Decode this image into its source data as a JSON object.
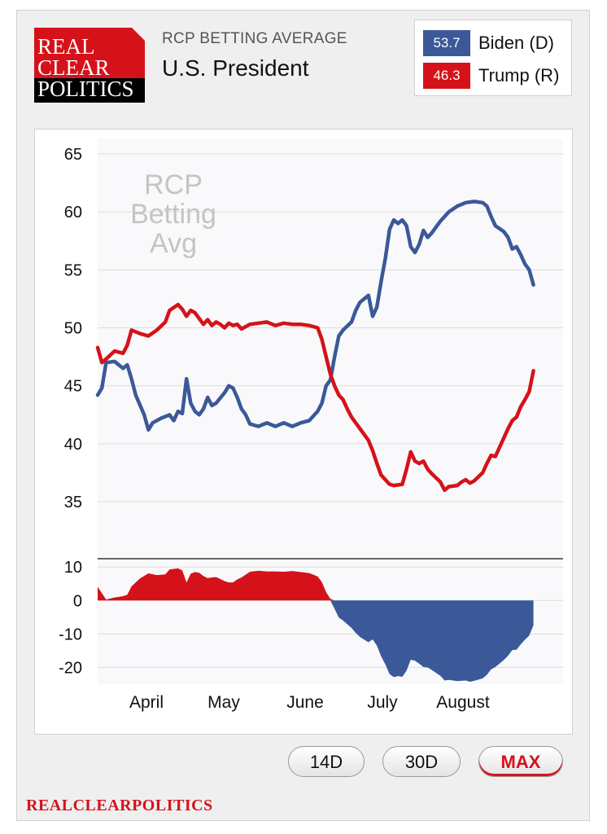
{
  "header": {
    "logo_lines": [
      "REAL",
      "CLEAR",
      "POLITICS"
    ],
    "subtitle": "RCP BETTING AVERAGE",
    "title": "U.S. President"
  },
  "legend": {
    "items": [
      {
        "value": "53.7",
        "name": "Biden (D)",
        "color": "#3b5998"
      },
      {
        "value": "46.3",
        "name": "Trump (R)",
        "color": "#d5121a"
      }
    ]
  },
  "buttons": {
    "d14": "14D",
    "d30": "30D",
    "max": "MAX"
  },
  "footer": "REALCLEARPOLITICS",
  "chart_data": [
    {
      "type": "line",
      "watermark": [
        "RCP",
        "Betting",
        "Avg"
      ],
      "ylim": [
        35,
        65
      ],
      "yticks": [
        35,
        40,
        45,
        50,
        55,
        60,
        65
      ],
      "grid": true,
      "x_labels": [
        "April",
        "May",
        "June",
        "July",
        "August"
      ],
      "series": [
        {
          "name": "Biden (D)",
          "color": "#3b5998",
          "points": [
            [
              0,
              44.2
            ],
            [
              1,
              44.8
            ],
            [
              2,
              47
            ],
            [
              4,
              47.1
            ],
            [
              6,
              46.5
            ],
            [
              7,
              46.8
            ],
            [
              8,
              45.6
            ],
            [
              9,
              44.2
            ],
            [
              11,
              42.5
            ],
            [
              12,
              41.2
            ],
            [
              13,
              41.8
            ],
            [
              15,
              42.2
            ],
            [
              17,
              42.5
            ],
            [
              18,
              42.0
            ],
            [
              19,
              42.8
            ],
            [
              20,
              42.6
            ],
            [
              21,
              45.6
            ],
            [
              22,
              43.5
            ],
            [
              23,
              42.8
            ],
            [
              24,
              42.5
            ],
            [
              25,
              43.0
            ],
            [
              26,
              44.0
            ],
            [
              27,
              43.3
            ],
            [
              28,
              43.5
            ],
            [
              30,
              44.4
            ],
            [
              31,
              45.0
            ],
            [
              32,
              44.8
            ],
            [
              33,
              44.0
            ],
            [
              34,
              43.0
            ],
            [
              35,
              42.5
            ],
            [
              36,
              41.7
            ],
            [
              38,
              41.5
            ],
            [
              40,
              41.8
            ],
            [
              42,
              41.5
            ],
            [
              44,
              41.8
            ],
            [
              46,
              41.5
            ],
            [
              48,
              41.8
            ],
            [
              50,
              42.0
            ],
            [
              52,
              42.8
            ],
            [
              53,
              43.5
            ],
            [
              54,
              45.0
            ],
            [
              55,
              45.5
            ],
            [
              56,
              47.5
            ],
            [
              57,
              49.3
            ],
            [
              58,
              49.8
            ],
            [
              60,
              50.5
            ],
            [
              61,
              51.5
            ],
            [
              62,
              52.2
            ],
            [
              64,
              52.8
            ],
            [
              65,
              51.0
            ],
            [
              66,
              51.8
            ],
            [
              67,
              54.0
            ],
            [
              68,
              56.0
            ],
            [
              69,
              58.5
            ],
            [
              70,
              59.3
            ],
            [
              71,
              59.0
            ],
            [
              72,
              59.3
            ],
            [
              73,
              58.8
            ],
            [
              74,
              57.0
            ],
            [
              75,
              56.5
            ],
            [
              76,
              57.2
            ],
            [
              77,
              58.4
            ],
            [
              78,
              57.8
            ],
            [
              79,
              58.2
            ],
            [
              81,
              59.2
            ],
            [
              83,
              60.0
            ],
            [
              85,
              60.5
            ],
            [
              87,
              60.8
            ],
            [
              89,
              60.9
            ],
            [
              91,
              60.8
            ],
            [
              92,
              60.5
            ],
            [
              93,
              59.6
            ],
            [
              94,
              58.8
            ],
            [
              96,
              58.3
            ],
            [
              97,
              57.8
            ],
            [
              98,
              56.8
            ],
            [
              99,
              57.0
            ],
            [
              100,
              56.3
            ],
            [
              101,
              55.5
            ],
            [
              102,
              55.0
            ],
            [
              103,
              53.7
            ]
          ]
        },
        {
          "name": "Trump (R)",
          "color": "#d5121a",
          "points": [
            [
              0,
              48.3
            ],
            [
              1,
              47.0
            ],
            [
              2,
              47.3
            ],
            [
              4,
              48.0
            ],
            [
              6,
              47.8
            ],
            [
              7,
              48.5
            ],
            [
              8,
              49.8
            ],
            [
              10,
              49.5
            ],
            [
              12,
              49.3
            ],
            [
              14,
              49.8
            ],
            [
              16,
              50.5
            ],
            [
              17,
              51.5
            ],
            [
              19,
              52.0
            ],
            [
              20,
              51.6
            ],
            [
              21,
              51.0
            ],
            [
              22,
              51.5
            ],
            [
              23,
              51.3
            ],
            [
              24,
              50.8
            ],
            [
              25,
              50.3
            ],
            [
              26,
              50.7
            ],
            [
              27,
              50.2
            ],
            [
              28,
              50.5
            ],
            [
              29,
              50.3
            ],
            [
              30,
              50.0
            ],
            [
              31,
              50.4
            ],
            [
              32,
              50.2
            ],
            [
              33,
              50.3
            ],
            [
              34,
              49.9
            ],
            [
              36,
              50.3
            ],
            [
              38,
              50.4
            ],
            [
              40,
              50.5
            ],
            [
              42,
              50.2
            ],
            [
              44,
              50.4
            ],
            [
              46,
              50.3
            ],
            [
              48,
              50.3
            ],
            [
              50,
              50.2
            ],
            [
              52,
              50.0
            ],
            [
              53,
              49.0
            ],
            [
              54,
              47.5
            ],
            [
              55,
              46.0
            ],
            [
              56,
              45.0
            ],
            [
              57,
              44.2
            ],
            [
              58,
              43.8
            ],
            [
              59,
              43.0
            ],
            [
              60,
              42.3
            ],
            [
              61,
              41.8
            ],
            [
              62,
              41.3
            ],
            [
              63,
              40.8
            ],
            [
              64,
              40.3
            ],
            [
              65,
              39.4
            ],
            [
              66,
              38.3
            ],
            [
              67,
              37.3
            ],
            [
              68,
              36.9
            ],
            [
              69,
              36.5
            ],
            [
              70,
              36.4
            ],
            [
              72,
              36.5
            ],
            [
              73,
              37.8
            ],
            [
              74,
              39.3
            ],
            [
              75,
              38.5
            ],
            [
              76,
              38.3
            ],
            [
              77,
              38.5
            ],
            [
              78,
              37.8
            ],
            [
              79,
              37.4
            ],
            [
              81,
              36.7
            ],
            [
              82,
              36.0
            ],
            [
              83,
              36.3
            ],
            [
              85,
              36.4
            ],
            [
              86,
              36.7
            ],
            [
              87,
              36.9
            ],
            [
              88,
              36.6
            ],
            [
              89,
              36.8
            ],
            [
              91,
              37.5
            ],
            [
              92,
              38.3
            ],
            [
              93,
              39.0
            ],
            [
              94,
              38.9
            ],
            [
              96,
              40.5
            ],
            [
              97,
              41.3
            ],
            [
              98,
              42.0
            ],
            [
              99,
              42.3
            ],
            [
              100,
              43.2
            ],
            [
              101,
              43.8
            ],
            [
              102,
              44.5
            ],
            [
              103,
              46.3
            ]
          ]
        }
      ]
    },
    {
      "type": "area",
      "ylim": [
        -25,
        12
      ],
      "yticks": [
        10,
        0,
        -10,
        -20
      ],
      "grid": true,
      "series": [
        {
          "name": "Spread",
          "color_positive": "#d5121a",
          "color_negative": "#3b5998",
          "points": [
            [
              0,
              4.1
            ],
            [
              1,
              2.2
            ],
            [
              2,
              0.3
            ],
            [
              4,
              0.9
            ],
            [
              6,
              1.3
            ],
            [
              7,
              1.7
            ],
            [
              8,
              4.2
            ],
            [
              10,
              6.6
            ],
            [
              12,
              8.1
            ],
            [
              14,
              7.6
            ],
            [
              16,
              7.8
            ],
            [
              17,
              9.3
            ],
            [
              19,
              9.6
            ],
            [
              20,
              9.0
            ],
            [
              21,
              5.4
            ],
            [
              22,
              8.0
            ],
            [
              23,
              8.5
            ],
            [
              24,
              8.3
            ],
            [
              25,
              7.3
            ],
            [
              26,
              6.7
            ],
            [
              27,
              6.9
            ],
            [
              28,
              7.0
            ],
            [
              30,
              5.8
            ],
            [
              31,
              5.4
            ],
            [
              32,
              5.4
            ],
            [
              33,
              6.3
            ],
            [
              34,
              6.9
            ],
            [
              36,
              8.6
            ],
            [
              38,
              8.9
            ],
            [
              40,
              8.7
            ],
            [
              42,
              8.7
            ],
            [
              44,
              8.6
            ],
            [
              46,
              8.8
            ],
            [
              48,
              8.5
            ],
            [
              50,
              8.2
            ],
            [
              52,
              7.2
            ],
            [
              53,
              5.5
            ],
            [
              54,
              2.5
            ],
            [
              55,
              0.5
            ],
            [
              56,
              -2.5
            ],
            [
              57,
              -5.1
            ],
            [
              58,
              -6.0
            ],
            [
              60,
              -8.2
            ],
            [
              61,
              -9.7
            ],
            [
              62,
              -10.9
            ],
            [
              64,
              -12.5
            ],
            [
              65,
              -11.6
            ],
            [
              66,
              -13.5
            ],
            [
              67,
              -16.7
            ],
            [
              68,
              -19.1
            ],
            [
              69,
              -22.0
            ],
            [
              70,
              -22.9
            ],
            [
              71,
              -22.6
            ],
            [
              72,
              -22.8
            ],
            [
              73,
              -21.0
            ],
            [
              74,
              -17.7
            ],
            [
              75,
              -18.0
            ],
            [
              76,
              -18.9
            ],
            [
              77,
              -19.9
            ],
            [
              78,
              -20.0
            ],
            [
              79,
              -20.8
            ],
            [
              81,
              -22.5
            ],
            [
              82,
              -23.9
            ],
            [
              83,
              -23.7
            ],
            [
              85,
              -24.1
            ],
            [
              86,
              -24.0
            ],
            [
              87,
              -23.9
            ],
            [
              88,
              -24.3
            ],
            [
              89,
              -24.0
            ],
            [
              91,
              -23.3
            ],
            [
              92,
              -22.2
            ],
            [
              93,
              -20.6
            ],
            [
              94,
              -19.9
            ],
            [
              96,
              -17.8
            ],
            [
              97,
              -16.5
            ],
            [
              98,
              -14.8
            ],
            [
              99,
              -14.7
            ],
            [
              100,
              -13.1
            ],
            [
              101,
              -11.7
            ],
            [
              102,
              -10.5
            ],
            [
              103,
              -7.4
            ]
          ]
        }
      ]
    }
  ]
}
